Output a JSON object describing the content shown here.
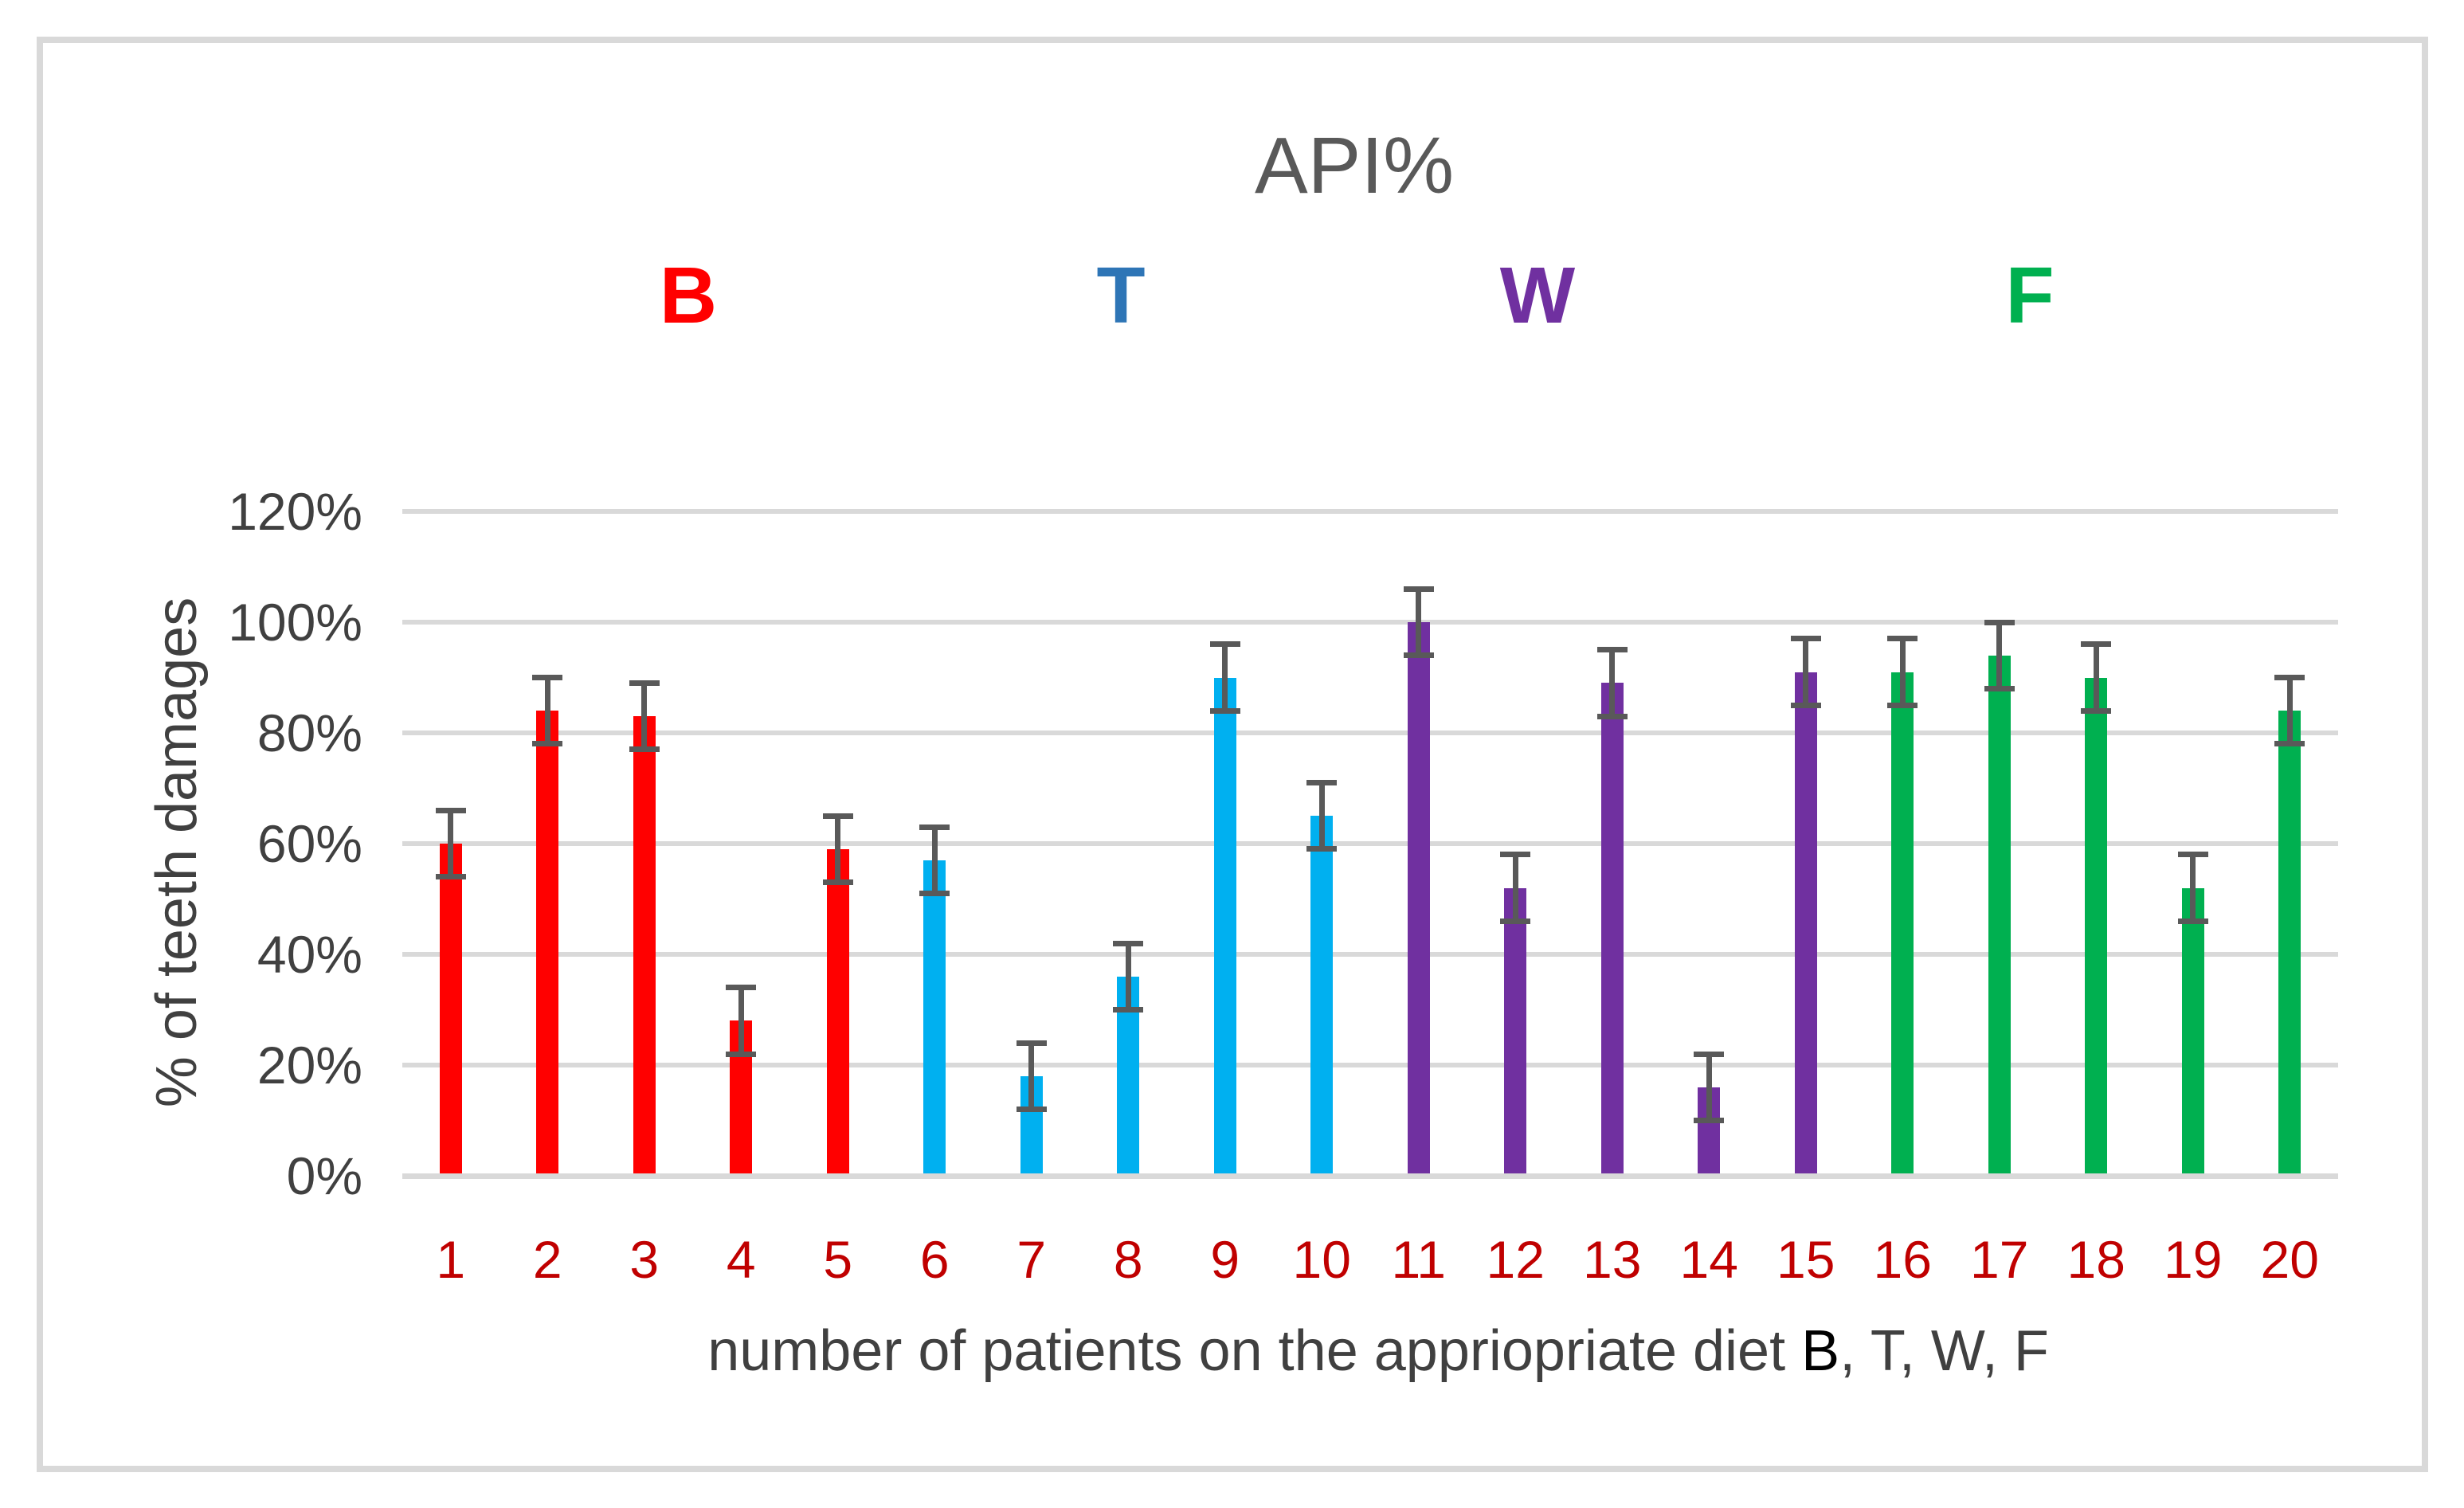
{
  "chart_data": {
    "type": "bar",
    "title": "API%",
    "ylabel": "% of teeth damages",
    "xlabel": "number of patients on the appriopriate diet B, T, W, F",
    "xlabel_segments": [
      {
        "text": "number of patients on the appriopriate diet ",
        "color": "#404040"
      },
      {
        "text": "B",
        "color": "#000000"
      },
      {
        "text": ", T, W, F",
        "color": "#404040"
      }
    ],
    "categories": [
      "1",
      "2",
      "3",
      "4",
      "5",
      "6",
      "7",
      "8",
      "9",
      "10",
      "11",
      "12",
      "13",
      "14",
      "15",
      "16",
      "17",
      "18",
      "19",
      "20"
    ],
    "values": [
      60,
      84,
      83,
      28,
      59,
      57,
      18,
      36,
      90,
      65,
      100,
      52,
      89,
      16,
      91,
      91,
      94,
      90,
      52,
      84
    ],
    "errors": [
      6,
      6,
      6,
      6,
      6,
      6,
      6,
      6,
      6,
      6,
      6,
      6,
      6,
      6,
      6,
      6,
      6,
      6,
      6,
      6
    ],
    "groups": [
      {
        "label": "B",
        "bar_color": "#FF0000",
        "legend_color": "#FF0000",
        "start_index": 0,
        "end_index": 4
      },
      {
        "label": "T",
        "bar_color": "#00B0F0",
        "legend_color": "#2E75B6",
        "start_index": 5,
        "end_index": 9
      },
      {
        "label": "W",
        "bar_color": "#7030A0",
        "legend_color": "#7030A0",
        "start_index": 10,
        "end_index": 14
      },
      {
        "label": "F",
        "bar_color": "#00B050",
        "legend_color": "#00B050",
        "start_index": 15,
        "end_index": 19
      }
    ],
    "yticks": [
      {
        "value": 0,
        "label": "0%"
      },
      {
        "value": 20,
        "label": "20%"
      },
      {
        "value": 40,
        "label": "40%"
      },
      {
        "value": 60,
        "label": "60%"
      },
      {
        "value": 80,
        "label": "80%"
      },
      {
        "value": 100,
        "label": "100%"
      },
      {
        "value": 120,
        "label": "120%"
      }
    ],
    "ylim": [
      0,
      120
    ],
    "grid": true,
    "legend_position": "top-inside"
  },
  "colors": {
    "background": "#FFFFFF",
    "frame_border": "#D9D9D9",
    "gridline": "#D9D9D9",
    "axis_line": "#D9D9D9",
    "error_bar": "#595959",
    "title_text": "#595959",
    "axis_text": "#404040",
    "xtick_text": "#C00000"
  }
}
